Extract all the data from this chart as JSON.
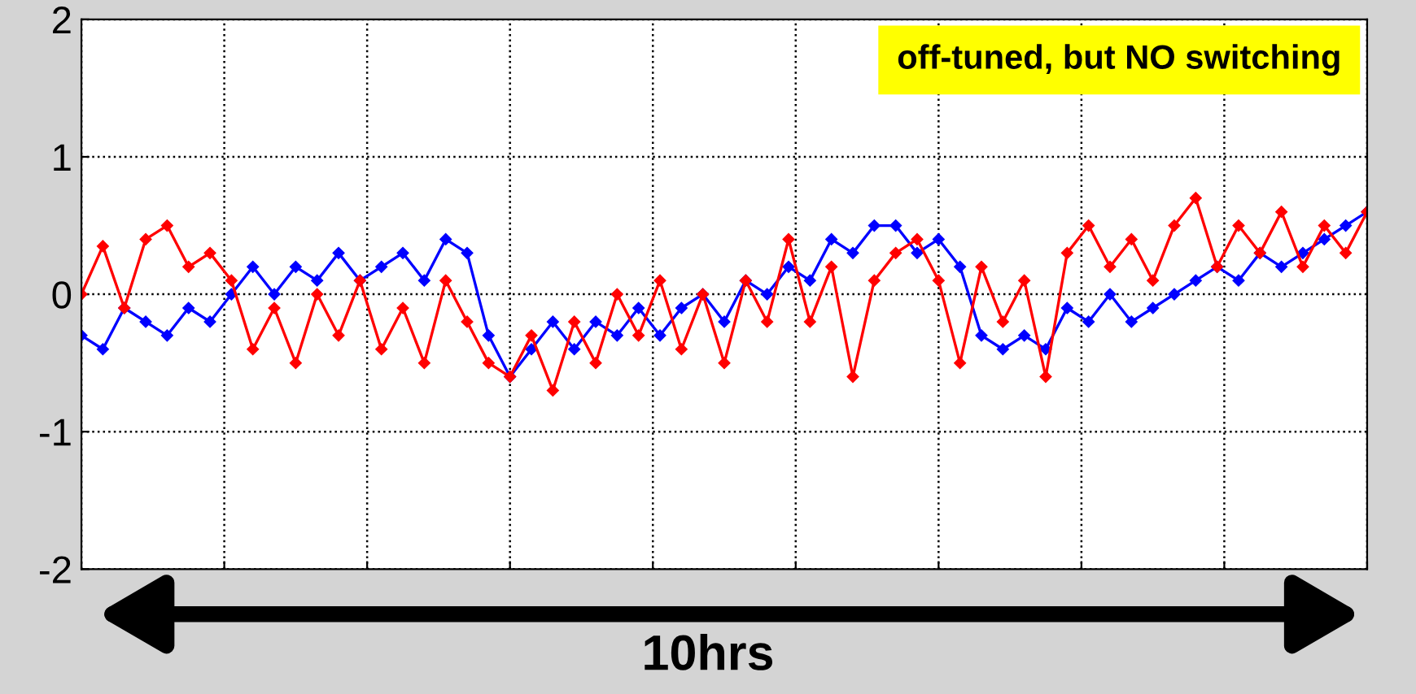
{
  "chart_data": {
    "type": "line",
    "categories": [
      null,
      null,
      null,
      null,
      null,
      null,
      null,
      null,
      null,
      null,
      null,
      null,
      null,
      null,
      null,
      null,
      null,
      null,
      null,
      null,
      null,
      null,
      null,
      null,
      null,
      null,
      null,
      null,
      null,
      null,
      null,
      null,
      null,
      null,
      null,
      null,
      null,
      null,
      null,
      null,
      null,
      null,
      null,
      null,
      null,
      null,
      null,
      null,
      null,
      null,
      null,
      null,
      null,
      null,
      null,
      null,
      null,
      null,
      null,
      null,
      null
    ],
    "series": [
      {
        "color": "#0000ff",
        "values": [
          -0.3,
          -0.4,
          -0.1,
          -0.2,
          -0.3,
          -0.1,
          -0.2,
          0.0,
          0.2,
          0.0,
          0.2,
          0.1,
          0.3,
          0.1,
          0.2,
          0.3,
          0.1,
          0.4,
          0.3,
          -0.3,
          -0.6,
          -0.4,
          -0.2,
          -0.4,
          -0.2,
          -0.3,
          -0.1,
          -0.3,
          -0.1,
          0.0,
          -0.2,
          0.1,
          0.0,
          0.2,
          0.1,
          0.4,
          0.3,
          0.5,
          0.5,
          0.3,
          0.4,
          0.2,
          -0.3,
          -0.4,
          -0.3,
          -0.4,
          -0.1,
          -0.2,
          0.0,
          -0.2,
          -0.1,
          0.0,
          0.1,
          0.2,
          0.1,
          0.3,
          0.2,
          0.3,
          0.4,
          0.5,
          0.6
        ]
      },
      {
        "color": "#ff0000",
        "values": [
          0.0,
          0.35,
          -0.1,
          0.4,
          0.5,
          0.2,
          0.3,
          0.1,
          -0.4,
          -0.1,
          -0.5,
          0.0,
          -0.3,
          0.1,
          -0.4,
          -0.1,
          -0.5,
          0.1,
          -0.2,
          -0.5,
          -0.6,
          -0.3,
          -0.7,
          -0.2,
          -0.5,
          0.0,
          -0.3,
          0.1,
          -0.4,
          0.0,
          -0.5,
          0.1,
          -0.2,
          0.4,
          -0.2,
          0.2,
          -0.6,
          0.1,
          0.3,
          0.4,
          0.1,
          -0.5,
          0.2,
          -0.2,
          0.1,
          -0.6,
          0.3,
          0.5,
          0.2,
          0.4,
          0.1,
          0.5,
          0.7,
          0.2,
          0.5,
          0.3,
          0.6,
          0.2,
          0.5,
          0.3,
          0.6
        ]
      }
    ],
    "ylim": [
      -2,
      2
    ],
    "yticks": [
      -2,
      -1,
      0,
      1,
      2
    ],
    "tick_labels": "y",
    "grid": true,
    "marker": "diamond",
    "line_style": "solid",
    "annotations": [
      "off-tuned, but NO switching",
      "10hrs"
    ]
  }
}
